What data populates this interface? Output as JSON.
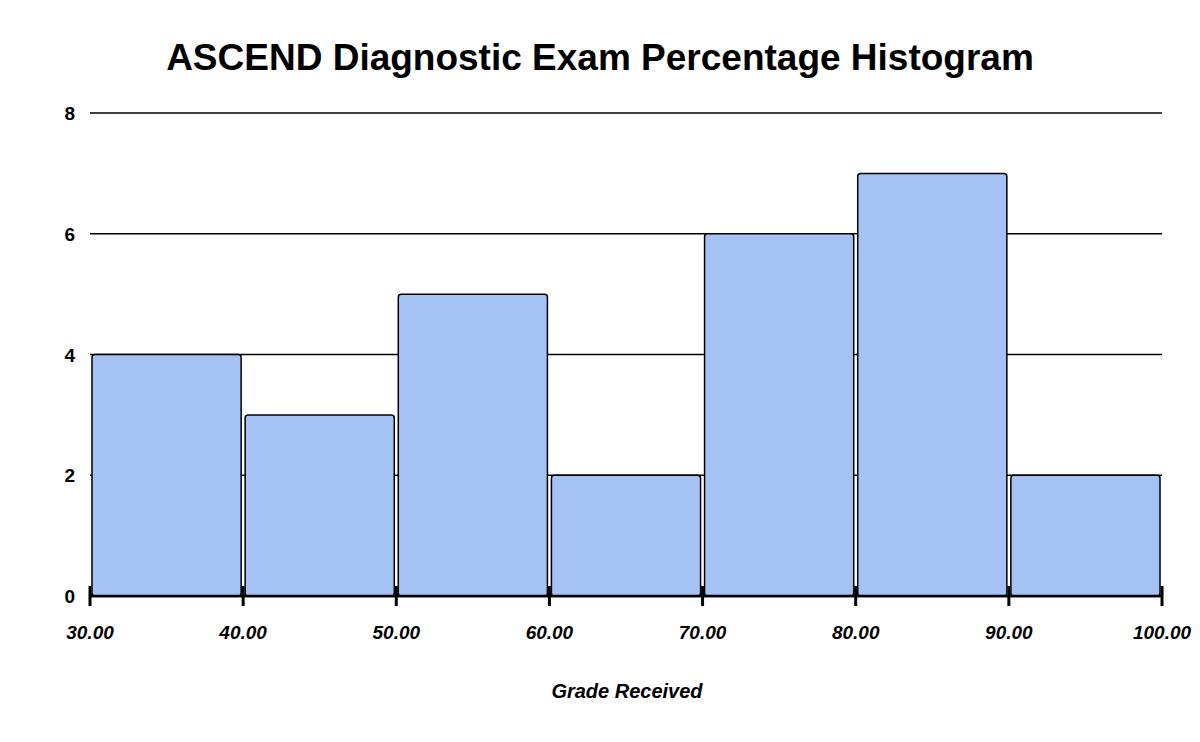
{
  "chart_data": {
    "type": "histogram",
    "title": "ASCEND Diagnostic Exam Percentage Histogram",
    "x_label": "Grade Received",
    "bins": [
      30,
      40,
      50,
      60,
      70,
      80,
      90,
      100
    ],
    "values": [
      4,
      3,
      5,
      2,
      6,
      7,
      2
    ],
    "color": "#a4c2f4",
    "xlim": [
      30,
      100
    ],
    "xticks": [
      {
        "value": 30,
        "label": "30.00"
      },
      {
        "value": 40,
        "label": "40.00"
      },
      {
        "value": 50,
        "label": "50.00"
      },
      {
        "value": 60,
        "label": "60.00"
      },
      {
        "value": 70,
        "label": "70.00"
      },
      {
        "value": 80,
        "label": "80.00"
      },
      {
        "value": 90,
        "label": "90.00"
      },
      {
        "value": 100,
        "label": "100.00"
      }
    ],
    "ylim": [
      0,
      8
    ],
    "yticks": [
      0,
      2,
      4,
      6,
      8
    ],
    "grid": true
  }
}
